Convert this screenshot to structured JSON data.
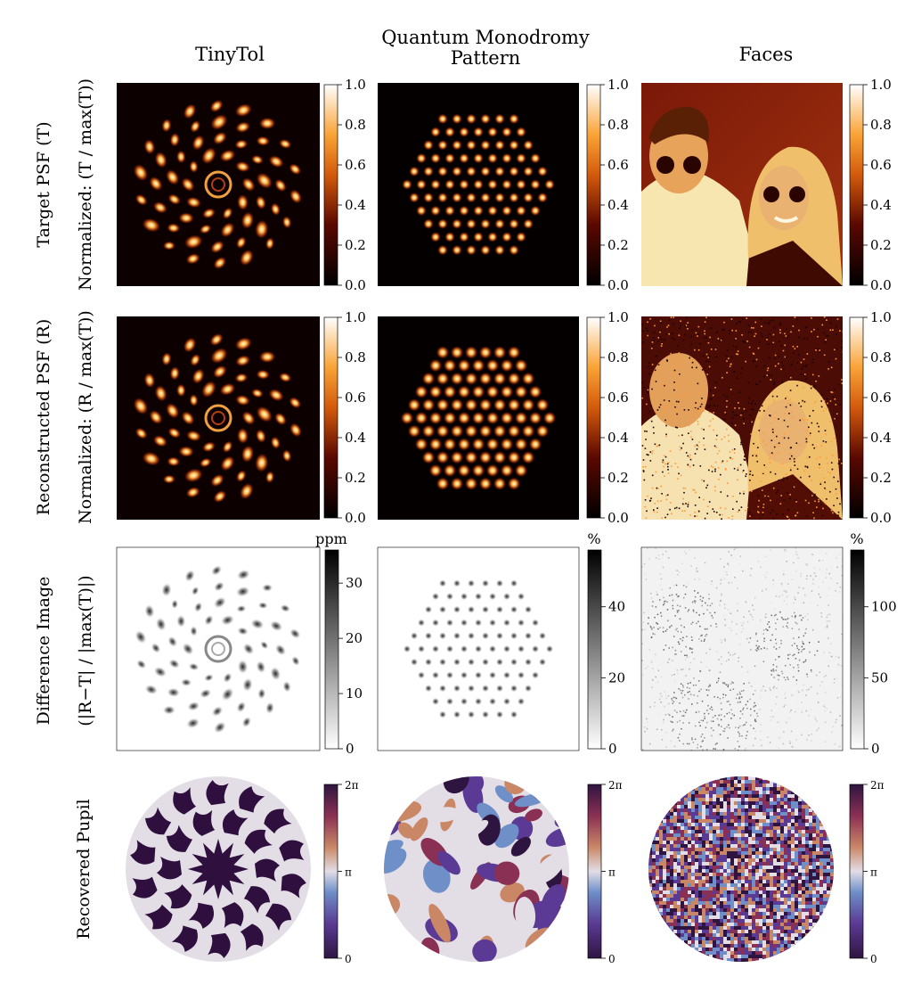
{
  "figure": {
    "columns": [
      {
        "title_lines": [
          "TinyTol"
        ]
      },
      {
        "title_lines": [
          "Quantum Monodromy",
          "Pattern"
        ]
      },
      {
        "title_lines": [
          "Faces"
        ]
      }
    ],
    "rows": [
      {
        "label_lines": [
          "Target PSF (T)",
          "Normalized: (T / max(T))"
        ]
      },
      {
        "label_lines": [
          "Reconstructed PSF (R)",
          "Normalized: (R / max(T))"
        ]
      },
      {
        "label_lines": [
          "Difference Image",
          "(|R−T| / |max(T)|)"
        ]
      },
      {
        "label_lines": [
          "Recovered Pupil"
        ]
      }
    ],
    "colorbars": {
      "normalized": {
        "ticks": [
          "0.0",
          "0.2",
          "0.4",
          "0.6",
          "0.8",
          "1.0"
        ],
        "range": [
          0,
          1
        ],
        "colormap": "afmhot"
      },
      "difference": [
        {
          "unit": "ppm",
          "ticks": [
            "0",
            "10",
            "20",
            "30"
          ],
          "range": [
            0,
            36
          ],
          "colormap": "gray_r"
        },
        {
          "unit": "%",
          "ticks": [
            "0",
            "20",
            "40"
          ],
          "range": [
            0,
            56
          ],
          "colormap": "gray_r"
        },
        {
          "unit": "%",
          "ticks": [
            "0",
            "50",
            "100"
          ],
          "range": [
            0,
            140
          ],
          "colormap": "gray_r"
        }
      ],
      "phase": {
        "ticks": [
          "0",
          "π",
          "2π"
        ],
        "range_labels": [
          "0",
          "2π"
        ],
        "colormap": "twilight_shifted"
      }
    },
    "colors": {
      "hot_dark": "#0d0000",
      "hot_mid": "#c0460a",
      "hot_bright": "#ffe9a0",
      "pupil_dark": "#2e0f3e",
      "pupil_light": "#e3dde6"
    }
  }
}
